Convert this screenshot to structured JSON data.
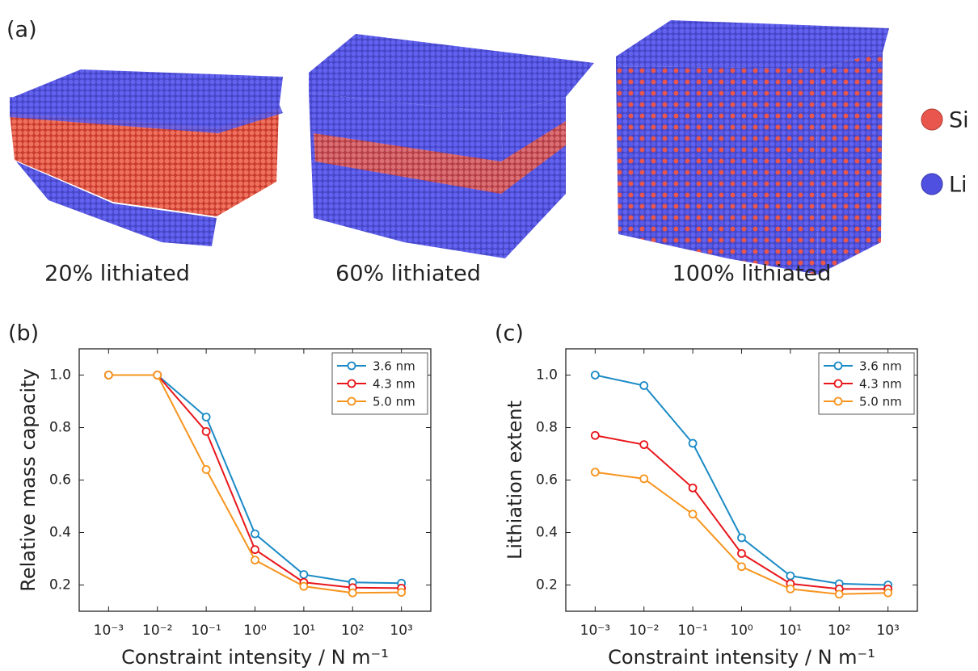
{
  "panel_a": {
    "label": "(a)",
    "legend": [
      {
        "name": "Si",
        "color": "#e8564d"
      },
      {
        "name": "Li",
        "color": "#5050e0"
      }
    ],
    "captions": [
      "20% lithiated",
      "60% lithiated",
      "100% lithiated"
    ]
  },
  "chart_data": [
    {
      "type": "line",
      "panel_label": "(b)",
      "x_label": "Constraint intensity / N m⁻¹",
      "y_label": "Relative mass capacity",
      "x_scale": "log",
      "legend": "upper right",
      "grid": false,
      "x": [
        0.001,
        0.01,
        0.1,
        1,
        10,
        100,
        1000
      ],
      "series": [
        {
          "name": "3.6 nm",
          "color": "#1a8ac6",
          "values": [
            1.0,
            1.0,
            0.84,
            0.395,
            0.24,
            0.21,
            0.207
          ]
        },
        {
          "name": "4.3 nm",
          "color": "#e8161b",
          "values": [
            1.0,
            1.0,
            0.785,
            0.335,
            0.21,
            0.19,
            0.188
          ]
        },
        {
          "name": "5.0 nm",
          "color": "#f7941d",
          "values": [
            1.0,
            1.0,
            0.64,
            0.295,
            0.195,
            0.17,
            0.172
          ]
        }
      ],
      "xlim": [
        0.00025,
        4000
      ],
      "xticks": [
        {
          "value": 0.001,
          "label": "10⁻³"
        },
        {
          "value": 0.01,
          "label": "10⁻²"
        },
        {
          "value": 0.1,
          "label": "10⁻¹"
        },
        {
          "value": 1,
          "label": "10⁰"
        },
        {
          "value": 10,
          "label": "10¹"
        },
        {
          "value": 100,
          "label": "10²"
        },
        {
          "value": 1000,
          "label": "10³"
        }
      ],
      "ylim": [
        0.1,
        1.1
      ],
      "yticks": [
        0.2,
        0.4,
        0.6,
        0.8,
        {
          "value": 1,
          "label": "1.0"
        }
      ]
    },
    {
      "type": "line",
      "panel_label": "(c)",
      "x_label": "Constraint intensity / N m⁻¹",
      "y_label": "Lithiation extent",
      "x_scale": "log",
      "legend": "upper right",
      "grid": false,
      "x": [
        0.001,
        0.01,
        0.1,
        1,
        10,
        100,
        1000
      ],
      "series": [
        {
          "name": "3.6 nm",
          "color": "#1a8ac6",
          "values": [
            1.0,
            0.96,
            0.74,
            0.38,
            0.235,
            0.205,
            0.2
          ]
        },
        {
          "name": "4.3 nm",
          "color": "#e8161b",
          "values": [
            0.77,
            0.735,
            0.57,
            0.32,
            0.205,
            0.185,
            0.185
          ]
        },
        {
          "name": "5.0 nm",
          "color": "#f7941d",
          "values": [
            0.63,
            0.605,
            0.47,
            0.27,
            0.185,
            0.165,
            0.17
          ]
        }
      ],
      "xlim": [
        0.00025,
        4000
      ],
      "xticks": [
        {
          "value": 0.001,
          "label": "10⁻³"
        },
        {
          "value": 0.01,
          "label": "10⁻²"
        },
        {
          "value": 0.1,
          "label": "10⁻¹"
        },
        {
          "value": 1,
          "label": "10⁰"
        },
        {
          "value": 10,
          "label": "10¹"
        },
        {
          "value": 100,
          "label": "10²"
        },
        {
          "value": 1000,
          "label": "10³"
        }
      ],
      "ylim": [
        0.1,
        1.1
      ],
      "yticks": [
        0.2,
        0.4,
        0.6,
        0.8,
        {
          "value": 1,
          "label": "1.0"
        }
      ]
    }
  ]
}
